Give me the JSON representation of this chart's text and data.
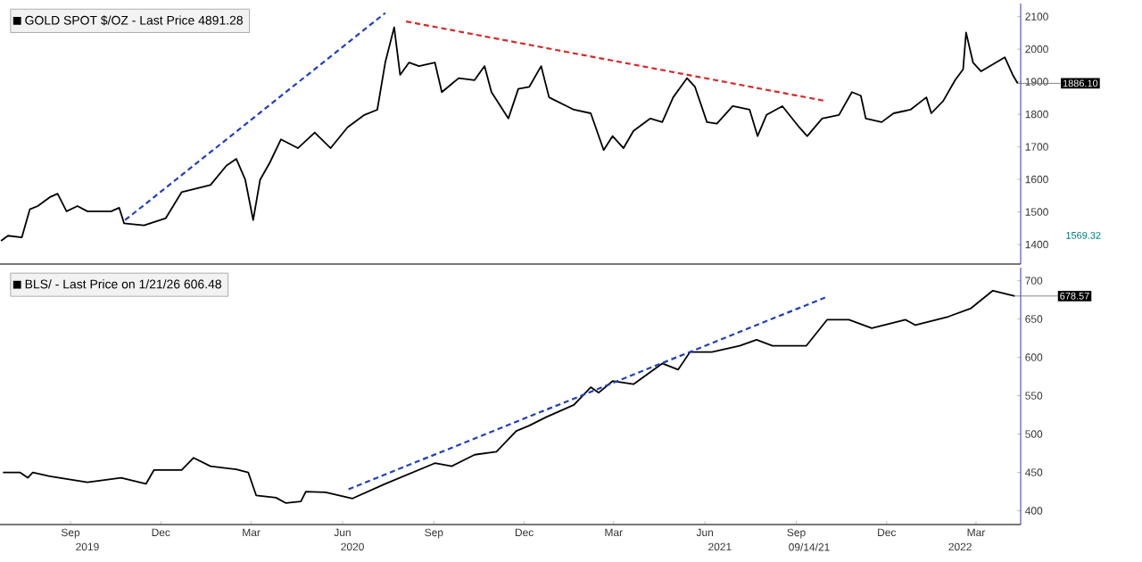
{
  "chart_data": [
    {
      "type": "line",
      "legend": "top left",
      "tick_labels": "y",
      "xlim": [
        "2019-06-22",
        "2022-04-15"
      ],
      "ylim": [
        1340,
        2140
      ],
      "yticks": [
        1400,
        1500,
        1600,
        1700,
        1800,
        1900,
        2000,
        2100
      ],
      "annotations": [
        {
          "text": "1886.10",
          "x": "2022-04-12",
          "y": 1895
        },
        "1569.32"
      ],
      "series": [
        {
          "name": "GOLD SPOT $/OZ - Last Price 4891.28",
          "color": "#000000",
          "line_style": "solid",
          "x": [
            "2019-06-23",
            "2019-06-30",
            "2019-07-14",
            "2019-07-22",
            "2019-07-30",
            "2019-08-11",
            "2019-08-19",
            "2019-08-28",
            "2019-09-08",
            "2019-09-18",
            "2019-10-12",
            "2019-10-20",
            "2019-10-25",
            "2019-11-14",
            "2019-12-06",
            "2019-12-22",
            "2020-01-20",
            "2020-02-05",
            "2020-02-15",
            "2020-02-24",
            "2020-03-03",
            "2020-03-10",
            "2020-03-20",
            "2020-03-31",
            "2020-04-17",
            "2020-05-04",
            "2020-05-20",
            "2020-06-06",
            "2020-06-23",
            "2020-07-06",
            "2020-07-14",
            "2020-07-23",
            "2020-07-29",
            "2020-08-07",
            "2020-08-17",
            "2020-09-02",
            "2020-09-09",
            "2020-09-26",
            "2020-10-12",
            "2020-10-22",
            "2020-10-29",
            "2020-11-15",
            "2020-11-25",
            "2020-12-06",
            "2020-12-18",
            "2020-12-26",
            "2021-01-20",
            "2021-02-06",
            "2021-02-19",
            "2021-02-28",
            "2021-03-11",
            "2021-03-21",
            "2021-04-07",
            "2021-04-19",
            "2021-04-30",
            "2021-05-14",
            "2021-05-22",
            "2021-06-03",
            "2021-06-13",
            "2021-06-29",
            "2021-07-16",
            "2021-07-24",
            "2021-08-02",
            "2021-08-18",
            "2021-09-04",
            "2021-09-12",
            "2021-09-27",
            "2021-10-14",
            "2021-10-27",
            "2021-11-05",
            "2021-11-10",
            "2021-11-26",
            "2021-12-08",
            "2021-12-25",
            "2022-01-10",
            "2022-01-15",
            "2022-01-27",
            "2022-02-08",
            "2022-02-16",
            "2022-02-19",
            "2022-02-26",
            "2022-03-06",
            "2022-03-30",
            "2022-04-07",
            "2022-04-12"
          ],
          "values": [
            1411,
            1427,
            1422,
            1508,
            1518,
            1545,
            1556,
            1502,
            1518,
            1502,
            1502,
            1513,
            1465,
            1459,
            1481,
            1561,
            1583,
            1642,
            1663,
            1599,
            1475,
            1599,
            1653,
            1723,
            1696,
            1744,
            1696,
            1760,
            1798,
            1814,
            1959,
            2067,
            1921,
            1959,
            1948,
            1959,
            1868,
            1911,
            1905,
            1948,
            1868,
            1787,
            1878,
            1884,
            1948,
            1852,
            1814,
            1803,
            1690,
            1733,
            1696,
            1749,
            1787,
            1776,
            1852,
            1911,
            1884,
            1776,
            1771,
            1825,
            1814,
            1733,
            1798,
            1825,
            1760,
            1733,
            1787,
            1798,
            1868,
            1857,
            1787,
            1776,
            1803,
            1814,
            1852,
            1803,
            1841,
            1905,
            1938,
            2051,
            1959,
            1932,
            1975,
            1921,
            1895
          ]
        },
        {
          "color": "#1f3fbf",
          "line_style": "dashed",
          "x": [
            "2019-10-26",
            "2020-07-14"
          ],
          "values": [
            1475,
            2111
          ]
        },
        {
          "color": "#d62a2a",
          "line_style": "dashed",
          "x": [
            "2020-08-04",
            "2021-09-30"
          ],
          "values": [
            2085,
            1841
          ]
        }
      ]
    },
    {
      "type": "line",
      "legend": "top left",
      "xlim": [
        "2019-06-22",
        "2022-04-15"
      ],
      "ylim": [
        382,
        717
      ],
      "xticks": [
        {
          "value": "2019-09-01",
          "label": "Sep"
        },
        {
          "value": "2019-12-01",
          "label": "Dec"
        },
        {
          "value": "2020-03-01",
          "label": "Mar"
        },
        {
          "value": "2020-06-01",
          "label": "Jun"
        },
        {
          "value": "2020-09-01",
          "label": "Sep"
        },
        {
          "value": "2020-12-01",
          "label": "Dec"
        },
        {
          "value": "2021-03-01",
          "label": "Mar"
        },
        {
          "value": "2021-06-01",
          "label": "Jun"
        },
        {
          "value": "2021-09-01",
          "label": "Sep"
        },
        {
          "value": "2021-12-01",
          "label": "Dec"
        },
        {
          "value": "2022-03-01",
          "label": "Mar"
        }
      ],
      "x2lim": [
        "2019-06-22",
        "2022-04-15"
      ],
      "x2ticks": [
        {
          "value": "2019-09-18",
          "label": "2019"
        },
        {
          "value": "2020-06-11",
          "label": "2020"
        },
        {
          "value": "2021-06-16",
          "label": "2021"
        },
        {
          "value": "2021-09-14",
          "label": "09/14/21"
        },
        {
          "value": "2022-02-13",
          "label": "2022"
        }
      ],
      "yticks": [
        400,
        450,
        500,
        550,
        600,
        650,
        700
      ],
      "annotations": [
        {
          "text": "678.57",
          "x": "2022-04-09",
          "y": 680
        }
      ],
      "series": [
        {
          "name": "BLS/ - Last Price on 1/21/26 606.48",
          "color": "#000000",
          "line_style": "solid",
          "x": [
            "2019-06-25",
            "2019-07-12",
            "2019-07-20",
            "2019-07-25",
            "2019-08-11",
            "2019-09-18",
            "2019-10-22",
            "2019-11-16",
            "2019-11-24",
            "2019-12-22",
            "2020-01-03",
            "2020-01-20",
            "2020-02-15",
            "2020-02-27",
            "2020-03-06",
            "2020-03-26",
            "2020-04-05",
            "2020-04-20",
            "2020-04-25",
            "2020-05-15",
            "2020-06-11",
            "2020-07-14",
            "2020-09-02",
            "2020-09-19",
            "2020-10-12",
            "2020-11-03",
            "2020-11-23",
            "2020-12-06",
            "2020-12-23",
            "2021-01-20",
            "2021-02-06",
            "2021-02-14",
            "2021-02-28",
            "2021-03-21",
            "2021-04-19",
            "2021-05-05",
            "2021-05-17",
            "2021-06-08",
            "2021-07-06",
            "2021-07-23",
            "2021-08-08",
            "2021-09-11",
            "2021-10-02",
            "2021-10-24",
            "2021-11-16",
            "2021-12-20",
            "2021-12-30",
            "2022-02-01",
            "2022-02-24",
            "2022-03-18",
            "2022-04-09"
          ],
          "values": [
            450,
            450,
            443,
            450,
            445,
            437,
            443,
            435,
            453,
            453,
            469,
            458,
            454,
            450,
            420,
            417,
            410,
            412,
            425,
            424,
            416,
            435,
            462,
            458,
            473,
            477,
            504,
            511,
            522,
            538,
            561,
            554,
            569,
            565,
            592,
            584,
            607,
            607,
            615,
            623,
            615,
            615,
            649,
            649,
            638,
            649,
            642,
            653,
            664,
            687,
            680
          ]
        },
        {
          "color": "#1f3fbf",
          "line_style": "dashed",
          "x": [
            "2020-06-07",
            "2021-09-30"
          ],
          "values": [
            428,
            678
          ]
        }
      ]
    }
  ]
}
